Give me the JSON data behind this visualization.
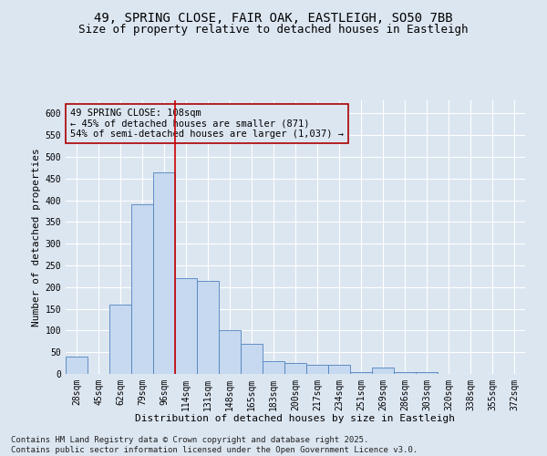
{
  "title_line1": "49, SPRING CLOSE, FAIR OAK, EASTLEIGH, SO50 7BB",
  "title_line2": "Size of property relative to detached houses in Eastleigh",
  "xlabel": "Distribution of detached houses by size in Eastleigh",
  "ylabel": "Number of detached properties",
  "bar_labels": [
    "28sqm",
    "45sqm",
    "62sqm",
    "79sqm",
    "96sqm",
    "114sqm",
    "131sqm",
    "148sqm",
    "165sqm",
    "183sqm",
    "200sqm",
    "217sqm",
    "234sqm",
    "251sqm",
    "269sqm",
    "286sqm",
    "303sqm",
    "320sqm",
    "338sqm",
    "355sqm",
    "372sqm"
  ],
  "bar_values": [
    40,
    0,
    160,
    390,
    465,
    220,
    215,
    100,
    70,
    30,
    25,
    20,
    20,
    5,
    15,
    5,
    5,
    0,
    0,
    0,
    0
  ],
  "bar_color": "#c6d9f0",
  "bar_edge_color": "#4f81bd",
  "bg_color": "#dce6f1",
  "grid_color": "#ffffff",
  "vline_x": 4.5,
  "vline_color": "#cc0000",
  "annotation_text": "49 SPRING CLOSE: 108sqm\n← 45% of detached houses are smaller (871)\n54% of semi-detached houses are larger (1,037) →",
  "annotation_box_color": "#aa0000",
  "ylim": [
    0,
    630
  ],
  "yticks": [
    0,
    50,
    100,
    150,
    200,
    250,
    300,
    350,
    400,
    450,
    500,
    550,
    600
  ],
  "footer_line1": "Contains HM Land Registry data © Crown copyright and database right 2025.",
  "footer_line2": "Contains public sector information licensed under the Open Government Licence v3.0.",
  "title_fontsize": 10,
  "subtitle_fontsize": 9,
  "axis_label_fontsize": 8,
  "tick_fontsize": 7,
  "annotation_fontsize": 7.5,
  "footer_fontsize": 6.5
}
